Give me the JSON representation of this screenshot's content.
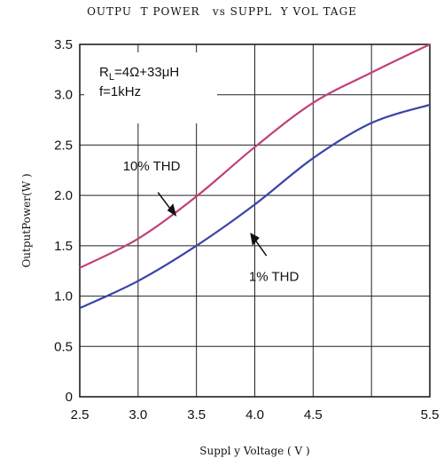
{
  "chart_data": {
    "type": "line",
    "title": "OUTPU  T POWER   vs SUPPL  Y VOL TAGE",
    "xlabel": "Suppl y Voltage ( V )",
    "ylabel": "OutputPower(W )",
    "xlim": [
      2.5,
      5.5
    ],
    "ylim": [
      0,
      3.5
    ],
    "x_ticks": [
      "2.5",
      "3.0",
      "3.5",
      "4.0",
      "4.5",
      "5.5"
    ],
    "y_ticks": [
      "0",
      "0.5",
      "1.0",
      "1.5",
      "2.0",
      "2.5",
      "3.0",
      "3.5"
    ],
    "grid": true,
    "legend_box": {
      "line1_prefix": "R",
      "line1_sub": "L",
      "line1_rest": "=4Ω+33μH",
      "line2": "f=1kHz"
    },
    "series": [
      {
        "name": "10% THD",
        "color": "#c0407a",
        "x": [
          2.5,
          3.0,
          3.5,
          4.0,
          4.5,
          5.0,
          5.5
        ],
        "y": [
          1.28,
          1.57,
          1.99,
          2.48,
          2.92,
          3.22,
          3.5
        ]
      },
      {
        "name": "1% THD",
        "color": "#3a44a8",
        "x": [
          2.5,
          3.0,
          3.5,
          4.0,
          4.5,
          5.0,
          5.5
        ],
        "y": [
          0.88,
          1.15,
          1.5,
          1.91,
          2.37,
          2.72,
          2.9
        ]
      }
    ],
    "annotations": [
      {
        "text": "10% THD",
        "series": 0
      },
      {
        "text": "1% THD",
        "series": 1
      }
    ]
  }
}
